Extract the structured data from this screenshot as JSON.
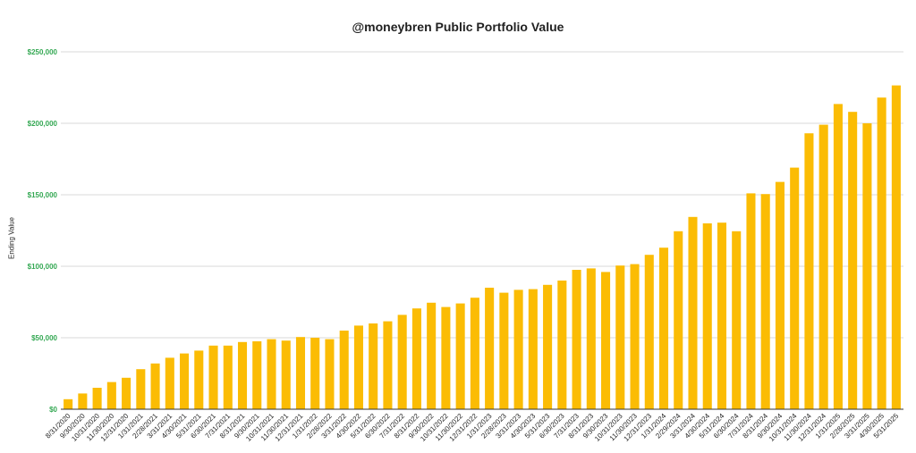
{
  "colors": {
    "bar": "#fbbc04",
    "grid": "#d9d9d9",
    "axis": "#333333",
    "ytick": "#34a853"
  },
  "chart_data": {
    "type": "bar",
    "title": "@moneybren Public Portfolio Value",
    "xlabel": "",
    "ylabel": "Ending Value",
    "ylim": [
      0,
      250000
    ],
    "yticks": [
      0,
      50000,
      100000,
      150000,
      200000,
      250000
    ],
    "ytick_labels": [
      "$0",
      "$50,000",
      "$100,000",
      "$150,000",
      "$200,000",
      "$250,000"
    ],
    "grid": true,
    "legend": "none",
    "categories": [
      "8/31/2020",
      "9/30/2020",
      "10/31/2020",
      "11/30/2020",
      "12/31/2020",
      "1/31/2021",
      "2/28/2021",
      "3/31/2021",
      "4/30/2021",
      "5/31/2021",
      "6/30/2021",
      "7/31/2021",
      "8/31/2021",
      "9/30/2021",
      "10/31/2021",
      "11/30/2021",
      "12/31/2021",
      "1/31/2022",
      "2/28/2022",
      "3/31/2022",
      "4/30/2022",
      "5/31/2022",
      "6/30/2022",
      "7/31/2022",
      "8/31/2022",
      "9/30/2022",
      "10/31/2022",
      "11/30/2022",
      "12/31/2022",
      "1/31/2023",
      "2/28/2023",
      "3/31/2023",
      "4/30/2023",
      "5/31/2023",
      "6/30/2023",
      "7/31/2023",
      "8/31/2023",
      "9/30/2023",
      "10/31/2023",
      "11/30/2023",
      "12/31/2023",
      "1/31/2024",
      "2/29/2024",
      "3/31/2024",
      "4/30/2024",
      "5/31/2024",
      "6/30/2024",
      "7/31/2024",
      "8/31/2024",
      "9/30/2024",
      "10/31/2024",
      "11/30/2024",
      "12/31/2024",
      "1/31/2025",
      "2/28/2025",
      "3/31/2025",
      "4/30/2025",
      "5/31/2025"
    ],
    "series": [
      {
        "values": [
          7000,
          11000,
          15000,
          19000,
          22000,
          28000,
          32000,
          36000,
          39000,
          41000,
          44500,
          44500,
          47000,
          47500,
          49000,
          48000,
          50500,
          50000,
          49000,
          55000,
          58500,
          60000,
          61500,
          66000,
          70500,
          74500,
          71500,
          74000,
          78000,
          85000,
          81500,
          83500,
          84000,
          87000,
          90000,
          97500,
          98500,
          96000,
          100500,
          101500,
          108000,
          113000,
          124500,
          134500,
          130000,
          130500,
          124500,
          151000,
          150500,
          159000,
          169000,
          193000,
          199000,
          213500,
          208000,
          200000,
          218000,
          226500
        ]
      }
    ]
  }
}
